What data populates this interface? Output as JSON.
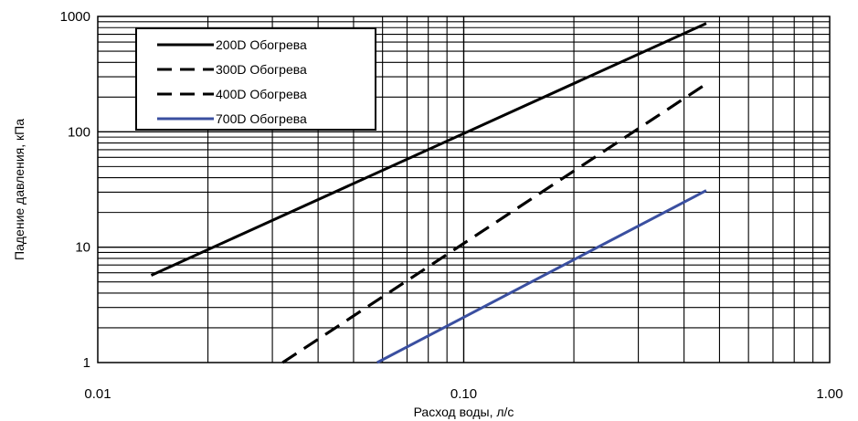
{
  "chart_data": {
    "type": "line",
    "xscale": "log",
    "yscale": "log",
    "xlim": [
      0.01,
      1.0
    ],
    "ylim": [
      1,
      1000
    ],
    "xlabel": "Расход воды, л/с",
    "ylabel": "Падение давления, кПа",
    "xticks": [
      "0.01",
      "0.10",
      "1.00"
    ],
    "yticks": [
      "1",
      "10",
      "100",
      "1000"
    ],
    "grid": true,
    "legend_position": "top-left",
    "series": [
      {
        "name": "200D Обогрева",
        "style": "solid",
        "color": "#000000",
        "points": [
          [
            0.014,
            5.7
          ],
          [
            0.46,
            870
          ]
        ]
      },
      {
        "name": "300D Обогрева",
        "style": "dashed",
        "color": "#000000",
        "points": [
          [
            0.032,
            1.0
          ],
          [
            0.46,
            260
          ]
        ]
      },
      {
        "name": "400D Обогрева",
        "style": "dashed",
        "color": "#000000",
        "points": [
          [
            0.032,
            1.0
          ],
          [
            0.46,
            260
          ]
        ]
      },
      {
        "name": "700D Обогрева",
        "style": "solid",
        "color": "#3a4fa0",
        "points": [
          [
            0.058,
            1.0
          ],
          [
            0.46,
            31
          ]
        ]
      }
    ]
  }
}
